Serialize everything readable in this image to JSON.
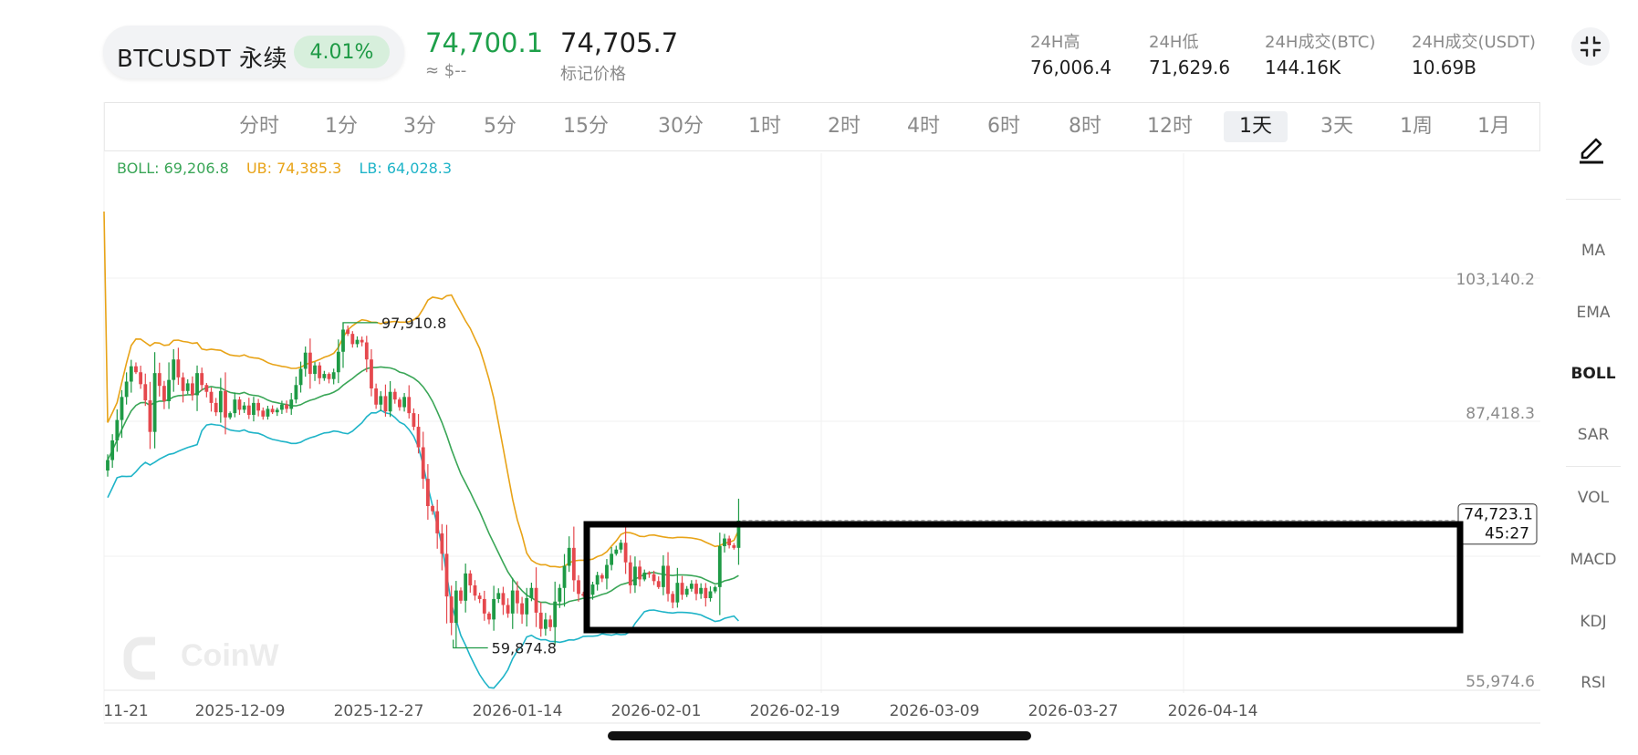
{
  "header": {
    "pair": "BTCUSDT 永续",
    "change": "4.01%",
    "last_price": "74,700.1",
    "approx_value": "≈ $--",
    "mark_price": "74,705.7",
    "mark_label": "标记价格",
    "stats": [
      {
        "label": "24H高",
        "value": "76,006.4"
      },
      {
        "label": "24H低",
        "value": "71,629.6"
      },
      {
        "label": "24H成交(BTC)",
        "value": "144.16K"
      },
      {
        "label": "24H成交(USDT)",
        "value": "10.69B"
      }
    ]
  },
  "intervals": [
    "分时",
    "1分",
    "3分",
    "5分",
    "15分",
    "30分",
    "1时",
    "2时",
    "4时",
    "6时",
    "8时",
    "12时",
    "1天",
    "3天",
    "1周",
    "1月"
  ],
  "active_interval": "1天",
  "legend": {
    "boll": "BOLL: 69,206.8",
    "ub": "UB: 74,385.3",
    "lb": "LB: 64,028.3"
  },
  "indicators": [
    "MA",
    "EMA",
    "BOLL",
    "SAR",
    "VOL",
    "MACD",
    "KDJ",
    "RSI"
  ],
  "active_indicator": "BOLL",
  "watermark": "CoinW",
  "colors": {
    "up": "#1e9a45",
    "down": "#e5484d",
    "boll_mid": "#3aa657",
    "boll_upper": "#e8a317",
    "boll_lower": "#1fb4c8"
  },
  "chart_data": {
    "type": "candlestick",
    "x_ticks": [
      "11-21",
      "2025-12-09",
      "2025-12-27",
      "2026-01-14",
      "2026-02-01",
      "2026-02-19",
      "2026-03-09",
      "2026-03-27",
      "2026-04-14"
    ],
    "y_ticks": [
      "103,140.2",
      "87,418.3",
      "55,974.6"
    ],
    "annotations": {
      "high_label": "97,910.8",
      "low_label": "59,874.8",
      "current_price": "74,723.1",
      "countdown": "45:27"
    },
    "closes": [
      81800,
      84100,
      86500,
      89200,
      91000,
      92800,
      92100,
      90700,
      88800,
      85100,
      92000,
      90500,
      88700,
      91200,
      93600,
      91500,
      89900,
      90800,
      89400,
      92000,
      90600,
      89800,
      88500,
      87400,
      89900,
      86800,
      87300,
      88900,
      87700,
      88200,
      87100,
      88500,
      87600,
      86900,
      87800,
      87400,
      87700,
      88300,
      87800,
      88900,
      90600,
      92500,
      94400,
      91900,
      92900,
      91400,
      91900,
      91300,
      92100,
      94500,
      97100,
      96600,
      95400,
      95900,
      95600,
      93600,
      90200,
      88300,
      89300,
      87500,
      89800,
      88900,
      88000,
      89200,
      87300,
      85700,
      83300,
      79600,
      76400,
      75800,
      73200,
      70800,
      65800,
      62700,
      66500,
      65300,
      68500,
      67100,
      65900,
      65500,
      63800,
      63100,
      65500,
      66200,
      64800,
      63800,
      66500,
      65000,
      63700,
      65600,
      66800,
      63900,
      62000,
      63100,
      62200,
      65200,
      66800,
      69400,
      71500,
      67700,
      66100,
      65900,
      66000,
      67200,
      68300,
      67900,
      69500,
      70800,
      71300,
      72100,
      69800,
      67100,
      69300,
      67800,
      68600,
      68400,
      67600,
      66900,
      69400,
      66100,
      65100,
      67400,
      66000,
      66700,
      67300,
      66100,
      66800,
      65600,
      66400,
      66900,
      71700,
      72600,
      71800,
      71500,
      74700
    ]
  }
}
